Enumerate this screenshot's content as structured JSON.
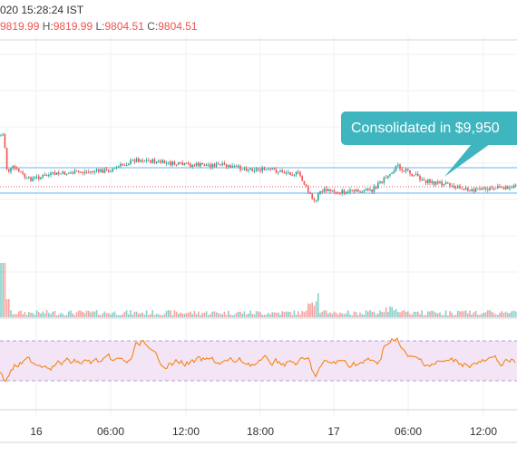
{
  "header": {
    "datetime": "020 15:28:24 IST",
    "ohlc": {
      "o_value": "9819.99",
      "h_label": "H:",
      "h_value": "9819.99",
      "l_label": "L:",
      "l_value": "9804.51",
      "c_label": "C:",
      "c_value": "9804.51"
    }
  },
  "annotation": {
    "text": "Consolidated in $9,950"
  },
  "time_axis": {
    "labels": [
      "16",
      "06:00",
      "12:00",
      "18:00",
      "17",
      "06:00",
      "12:00"
    ]
  },
  "colors": {
    "up": "#26a69a",
    "down": "#ef5350",
    "rsi_line": "#f57c00",
    "rsi_band": "#f3e5f5",
    "range_line": "#2196f3",
    "callout": "#3fb5bf"
  }
}
